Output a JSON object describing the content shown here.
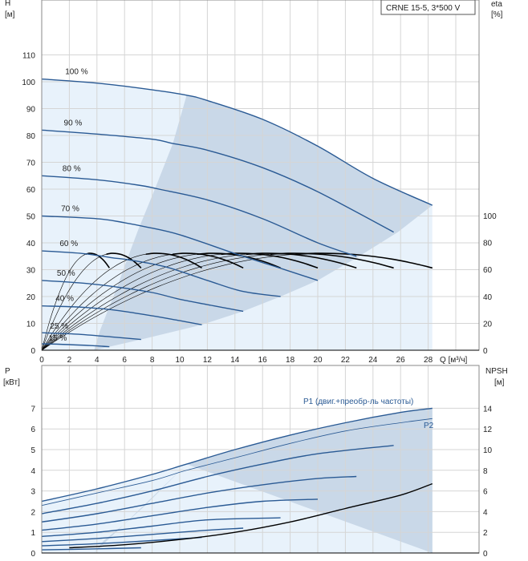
{
  "chart_data": [
    {
      "type": "line",
      "title_box": "CRNE 15-5, 3*500 V",
      "left_axis": {
        "name": "H",
        "unit": "[м]",
        "range": [
          0,
          120
        ],
        "ticks": [
          0,
          10,
          20,
          30,
          40,
          50,
          60,
          70,
          80,
          90,
          100,
          110
        ]
      },
      "right_axis": {
        "name": "eta",
        "unit": "[%]",
        "range": [
          0,
          100
        ],
        "ticks": [
          0,
          20,
          40,
          60,
          80,
          100
        ]
      },
      "x_axis": {
        "name": "Q",
        "unit": "[м³/ч]",
        "range": [
          0,
          30
        ],
        "ticks": [
          0,
          2,
          4,
          6,
          8,
          10,
          12,
          14,
          16,
          18,
          20,
          22,
          24,
          26,
          28
        ]
      },
      "grid": true,
      "speed_labels": [
        "100 %",
        "90 %",
        "80 %",
        "70 %",
        "60 %",
        "50 %",
        "40 %",
        "25 %",
        "15 %"
      ],
      "series": [
        {
          "speed": 100,
          "x": [
            0,
            4,
            8,
            10.5,
            12,
            16,
            20,
            24,
            28.3
          ],
          "y": [
            101,
            99.5,
            97,
            95,
            93,
            86,
            76,
            64,
            54
          ]
        },
        {
          "speed": 90,
          "x": [
            0,
            4,
            8,
            9.5,
            12,
            16,
            20,
            25.5
          ],
          "y": [
            82,
            80.5,
            78.6,
            77,
            74.5,
            68,
            59,
            44
          ]
        },
        {
          "speed": 80,
          "x": [
            0,
            4,
            7,
            8.5,
            12,
            16,
            20,
            22.8
          ],
          "y": [
            65,
            63.5,
            61.5,
            60,
            56,
            49,
            40,
            35
          ]
        },
        {
          "speed": 70,
          "x": [
            0,
            4,
            6,
            7.5,
            10,
            14,
            17,
            20
          ],
          "y": [
            50,
            49,
            47.5,
            46,
            43,
            36,
            31,
            26
          ]
        },
        {
          "speed": 60,
          "x": [
            0,
            3,
            5,
            6.5,
            9,
            12,
            14.5,
            17.3
          ],
          "y": [
            37,
            36,
            34.5,
            33.5,
            31,
            26,
            22,
            20
          ]
        },
        {
          "speed": 50,
          "x": [
            0,
            3,
            5.5,
            8,
            10,
            12.5,
            14.6
          ],
          "y": [
            26,
            25,
            23.5,
            21.5,
            19,
            16.5,
            14.5
          ]
        },
        {
          "speed": 40,
          "x": [
            0,
            3,
            5.5,
            8,
            10,
            11.6
          ],
          "y": [
            16.5,
            16,
            14.8,
            12.8,
            11,
            9.5
          ]
        },
        {
          "speed": 25,
          "x": [
            0,
            2.5,
            5,
            7.2
          ],
          "y": [
            6.5,
            6,
            5,
            4
          ]
        },
        {
          "speed": 15,
          "x": [
            0,
            2,
            4,
            4.9
          ],
          "y": [
            2.4,
            2.1,
            1.6,
            1.3
          ]
        }
      ]
    },
    {
      "type": "line",
      "left_axis": {
        "name": "P",
        "unit": "[кВт]",
        "range": [
          0,
          8
        ],
        "ticks": [
          0,
          1,
          2,
          3,
          4,
          5,
          6,
          7
        ]
      },
      "right_axis": {
        "name": "NPSH",
        "unit": "[м]",
        "range": [
          0,
          16
        ],
        "ticks": [
          0,
          2,
          4,
          6,
          8,
          10,
          12,
          14
        ]
      },
      "x_axis": {
        "range": [
          0,
          30
        ]
      },
      "labels": {
        "p1": "P1 (двиг.+преобр-ль частоты)",
        "p2": "P2"
      },
      "series": [
        {
          "name": "P1",
          "speed": 100,
          "x": [
            0,
            4,
            8,
            10.5,
            14,
            18,
            22,
            26,
            28.3
          ],
          "y": [
            2.5,
            3.1,
            3.8,
            4.3,
            5.0,
            5.7,
            6.3,
            6.8,
            7.0
          ]
        },
        {
          "name": "P2",
          "speed": 100,
          "x": [
            0,
            4,
            8,
            10.5,
            14,
            18,
            22,
            26,
            28.3
          ],
          "y": [
            2.3,
            2.9,
            3.5,
            4.0,
            4.6,
            5.3,
            5.9,
            6.3,
            6.5
          ]
        },
        {
          "name": "P1",
          "speed": 90,
          "x": [
            0,
            4,
            8,
            12,
            16,
            20,
            25.5
          ],
          "y": [
            1.9,
            2.4,
            3.0,
            3.7,
            4.3,
            4.8,
            5.2
          ]
        },
        {
          "name": "P1",
          "speed": 80,
          "x": [
            0,
            4,
            8,
            12,
            16,
            20,
            22.8
          ],
          "y": [
            1.5,
            1.9,
            2.4,
            2.9,
            3.3,
            3.6,
            3.7
          ]
        },
        {
          "name": "P1",
          "speed": 70,
          "x": [
            0,
            4,
            8,
            12,
            16,
            20
          ],
          "y": [
            1.1,
            1.4,
            1.8,
            2.2,
            2.5,
            2.6
          ]
        },
        {
          "name": "P1",
          "speed": 60,
          "x": [
            0,
            4,
            8,
            12,
            17.3
          ],
          "y": [
            0.8,
            1.0,
            1.3,
            1.6,
            1.7
          ]
        },
        {
          "name": "P1",
          "speed": 50,
          "x": [
            0,
            4,
            8,
            12,
            14.6
          ],
          "y": [
            0.55,
            0.7,
            0.9,
            1.1,
            1.2
          ]
        },
        {
          "name": "P1",
          "speed": 40,
          "x": [
            0,
            4,
            8,
            11.6
          ],
          "y": [
            0.35,
            0.45,
            0.6,
            0.75
          ]
        },
        {
          "name": "P1",
          "speed": 25,
          "x": [
            0,
            4,
            7.2
          ],
          "y": [
            0.15,
            0.2,
            0.25
          ]
        },
        {
          "name": "NPSH",
          "x": [
            2,
            6,
            10,
            14,
            18,
            22,
            26,
            28.3
          ],
          "y": [
            0.5,
            0.8,
            1.3,
            2.0,
            3.0,
            4.3,
            5.6,
            6.7
          ]
        }
      ]
    }
  ],
  "colors": {
    "curve": "#2a5a94",
    "fill_full": "#c9d8e8",
    "fill_light": "#e8f2fb",
    "grid": "#d5d5d5",
    "eta": "#000000"
  }
}
